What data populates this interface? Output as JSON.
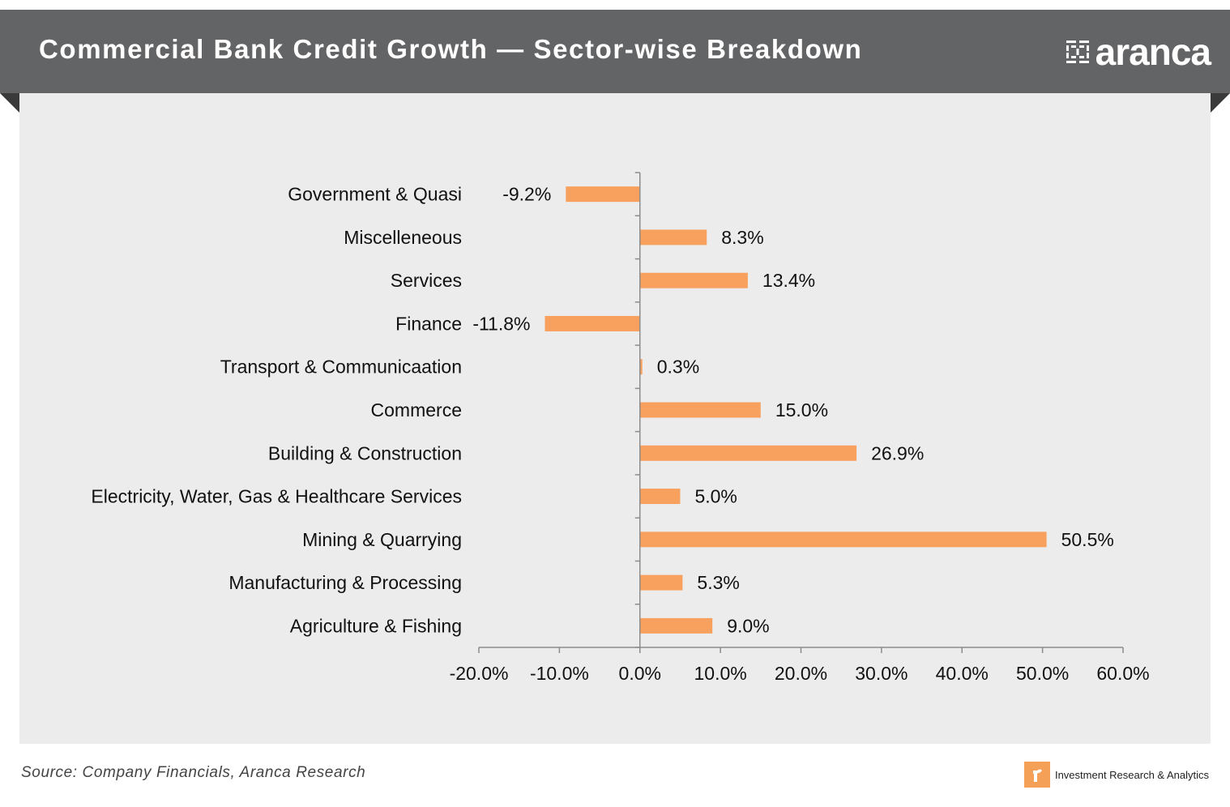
{
  "header": {
    "title": "Commercial Bank Credit Growth — Sector-wise Breakdown",
    "brand_name": "aranca"
  },
  "footer": {
    "source": "Source: Company Financials, Aranca Research",
    "tagline": "Investment  Research & Analytics"
  },
  "colors": {
    "banner": "#636466",
    "panel": "#ececec",
    "bar": "#f8a15e",
    "axis": "#8c8c8c"
  },
  "chart_data": {
    "type": "bar",
    "orientation": "horizontal",
    "categories": [
      "Government & Quasi",
      "Miscelleneous",
      "Services",
      "Finance",
      "Transport & Communicaation",
      "Commerce",
      "Building & Construction",
      "Electricity, Water, Gas & Healthcare Services",
      "Mining & Quarrying",
      "Manufacturing & Processing",
      "Agriculture & Fishing"
    ],
    "values": [
      -9.2,
      8.3,
      13.4,
      -11.8,
      0.3,
      15.0,
      26.9,
      5.0,
      50.5,
      5.3,
      9.0
    ],
    "data_labels": [
      "-9.2%",
      "8.3%",
      "13.4%",
      "-11.8%",
      "0.3%",
      "15.0%",
      "26.9%",
      "5.0%",
      "50.5%",
      "5.3%",
      "9.0%"
    ],
    "xlim": [
      -20,
      60
    ],
    "x_ticks": [
      -20,
      -10,
      0,
      10,
      20,
      30,
      40,
      50,
      60
    ],
    "x_tick_labels": [
      "-20.0%",
      "-10.0%",
      "0.0%",
      "10.0%",
      "20.0%",
      "30.0%",
      "40.0%",
      "50.0%",
      "60.0%"
    ],
    "grid": false,
    "legend": "none"
  }
}
